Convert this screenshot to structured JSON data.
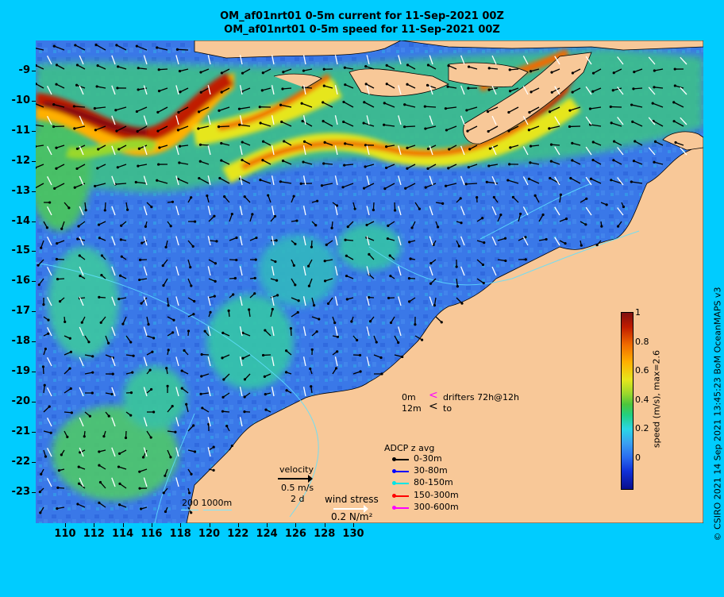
{
  "title_line1": "OM_af01nrt01 0-5m current for 11-Sep-2021 00Z",
  "title_line2": "OM_af01nrt01 0-5m speed for 11-Sep-2021 00Z",
  "y_ticks": [
    "-9",
    "-10",
    "-11",
    "-12",
    "-13",
    "-14",
    "-15",
    "-16",
    "-17",
    "-18",
    "-19",
    "-20",
    "-21",
    "-22",
    "-23"
  ],
  "x_ticks": [
    "110",
    "112",
    "114",
    "116",
    "118",
    "120",
    "122",
    "124",
    "126",
    "128",
    "130"
  ],
  "colorbar": {
    "ticks": [
      "1",
      "0.8",
      "0.6",
      "0.4",
      "0.2",
      "0"
    ],
    "label": "speed (m/s), max=2.6",
    "colors": [
      "#0a0f8c",
      "#2a6cf0",
      "#2ad6e6",
      "#4cc63c",
      "#e6e61c",
      "#f06a00",
      "#801010"
    ]
  },
  "drifters": {
    "depth_top": "0m",
    "depth_bottom": "12m",
    "label_top": "drifters 72h@12h",
    "label_bottom": "to",
    "marker_top_color": "#ff00ff"
  },
  "adcp": {
    "title": "ADCP z avg",
    "items": [
      {
        "label": "0-30m",
        "color": "#000000"
      },
      {
        "label": "30-80m",
        "color": "#0000ff"
      },
      {
        "label": "80-150m",
        "color": "#00e5e5"
      },
      {
        "label": "150-300m",
        "color": "#ff0000"
      },
      {
        "label": "300-600m",
        "color": "#ff00ff"
      }
    ]
  },
  "velocity_legend": {
    "title": "velocity",
    "speed": "0.5 m/s",
    "duration": "2 d"
  },
  "wind_legend": {
    "title": "wind stress",
    "value": "0.2 N/m²"
  },
  "bathymetry_legend": {
    "label": "200  1000m"
  },
  "credit": "© CSIRO 2021  14 Sep 2021 13:45:23 BoM OceanMAPS v3",
  "palette": {
    "background": "#00ccff",
    "land": "#f8c898",
    "ocean_base": "#3a78e8"
  }
}
